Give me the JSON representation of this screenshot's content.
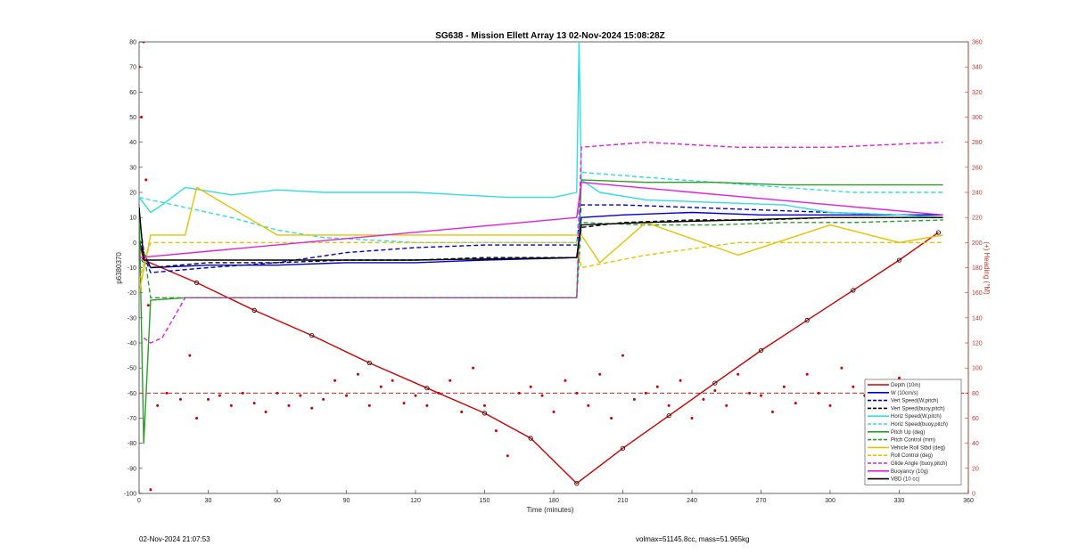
{
  "chart_data": {
    "type": "line",
    "title": "SG638 - Mission Ellett Array 13 02-Nov-2024 15:08:28Z",
    "xlabel": "Time (minutes)",
    "ylabel": "p6380370",
    "ylabel_right": "(+) Heading (°M)",
    "xlim": [
      0,
      360
    ],
    "ylim": [
      -100,
      80
    ],
    "ylim_right": [
      0,
      360
    ],
    "xticks": [
      "0",
      "30",
      "60",
      "90",
      "120",
      "150",
      "180",
      "210",
      "240",
      "270",
      "300",
      "330",
      "360"
    ],
    "yticks": [
      "80",
      "70",
      "60",
      "50",
      "40",
      "30",
      "20",
      "10",
      "0",
      "-10",
      "-20",
      "-30",
      "-40",
      "-50",
      "-60",
      "-70",
      "-80",
      "-90",
      "-100"
    ],
    "yticks_right": [
      "360",
      "340",
      "320",
      "300",
      "280",
      "260",
      "240",
      "220",
      "200",
      "180",
      "160",
      "140",
      "120",
      "100",
      "80",
      "60",
      "40",
      "20",
      "0"
    ],
    "grid": false,
    "legend_position": "bottom-right",
    "series": [
      {
        "name": "Depth (10m)",
        "color": "#cc0000",
        "style": "solid-marker",
        "x": [
          0,
          2,
          25,
          50,
          75,
          100,
          125,
          150,
          170,
          190,
          210,
          230,
          250,
          270,
          290,
          310,
          330,
          347
        ],
        "y": [
          0,
          -7,
          -16,
          -27,
          -37,
          -48,
          -58,
          -68,
          -78,
          -96,
          -82,
          -69,
          -56,
          -43,
          -31,
          -19,
          -7,
          4
        ]
      },
      {
        "name": "W (10cm/s)",
        "color": "#0000cc",
        "style": "solid",
        "x": [
          0,
          5,
          30,
          60,
          90,
          120,
          150,
          190,
          192,
          210,
          240,
          270,
          300,
          330,
          349
        ],
        "y": [
          0,
          -10,
          -9,
          -9,
          -8,
          -8,
          -7,
          -6,
          10,
          11,
          12,
          11,
          11,
          11,
          11
        ]
      },
      {
        "name": "Vert Speed(W,pitch)",
        "color": "#0000cc",
        "style": "dashed",
        "x": [
          0,
          5,
          30,
          60,
          90,
          120,
          150,
          190,
          192,
          210,
          240,
          270,
          300,
          330,
          349
        ],
        "y": [
          0,
          -12,
          -10,
          -8,
          -4,
          -2,
          -1,
          -1,
          15,
          15,
          14,
          13,
          12,
          11,
          11
        ]
      },
      {
        "name": "Vert Speed(buoy,pitch)",
        "color": "#000000",
        "style": "dashed",
        "x": [
          0,
          5,
          30,
          60,
          90,
          120,
          150,
          190,
          192,
          210,
          240,
          270,
          300,
          330,
          349
        ],
        "y": [
          0,
          -10,
          -8,
          -8,
          -7,
          -7,
          -6,
          -6,
          6,
          8,
          9,
          9,
          10,
          10,
          10
        ]
      },
      {
        "name": "Horiz Speed(W,pitch)",
        "color": "#33dddd",
        "style": "solid",
        "x": [
          0,
          5,
          10,
          20,
          40,
          60,
          80,
          100,
          120,
          140,
          160,
          180,
          190,
          191,
          192,
          200,
          220,
          250,
          280,
          300,
          330,
          349
        ],
        "y": [
          18,
          12,
          15,
          22,
          19,
          21,
          20,
          20,
          20,
          19,
          18,
          18,
          20,
          80,
          25,
          20,
          17,
          16,
          15,
          12,
          11,
          10
        ]
      },
      {
        "name": "Horiz Speed(buoy,pitch)",
        "color": "#33dddd",
        "style": "dashed",
        "x": [
          0,
          20,
          40,
          60,
          80,
          100,
          120,
          150,
          190,
          192,
          220,
          250,
          280,
          310,
          349
        ],
        "y": [
          18,
          14,
          10,
          5,
          2,
          1,
          0,
          0,
          0,
          28,
          26,
          24,
          22,
          20,
          20
        ]
      },
      {
        "name": "Pitch Up (deg)",
        "color": "#2a9d2a",
        "style": "solid",
        "x": [
          0,
          2,
          5,
          20,
          60,
          120,
          190,
          192,
          220,
          250,
          280,
          310,
          349
        ],
        "y": [
          15,
          -80,
          -23,
          -22,
          -22,
          -22,
          -22,
          25,
          24,
          24,
          23,
          23,
          23
        ]
      },
      {
        "name": "Pitch Control (mm)",
        "color": "#2a9d2a",
        "style": "dashed",
        "x": [
          0,
          5,
          60,
          120,
          190,
          192,
          220,
          250,
          280,
          310,
          349
        ],
        "y": [
          10,
          -22,
          -22,
          -22,
          -22,
          8,
          7,
          7,
          8,
          8,
          9
        ]
      },
      {
        "name": "Vehicle Roll Stbd (deg)",
        "color": "#e6c200",
        "style": "solid",
        "x": [
          0,
          5,
          20,
          25,
          60,
          120,
          190,
          192,
          200,
          220,
          260,
          300,
          330,
          349
        ],
        "y": [
          -20,
          3,
          3,
          22,
          3,
          3,
          3,
          3,
          -8,
          8,
          -5,
          7,
          0,
          3
        ]
      },
      {
        "name": "Roll Control (deg)",
        "color": "#e6c200",
        "style": "dashed",
        "x": [
          0,
          5,
          20,
          60,
          120,
          190,
          192,
          220,
          260,
          300,
          349
        ],
        "y": [
          -15,
          0,
          0,
          0,
          0,
          0,
          -10,
          -5,
          0,
          0,
          0
        ]
      },
      {
        "name": "Glide Angle (buoy,pitch)",
        "color": "#dd22dd",
        "style": "dashed",
        "x": [
          2,
          5,
          10,
          20,
          60,
          120,
          190,
          192,
          220,
          260,
          300,
          349
        ],
        "y": [
          -38,
          -40,
          -38,
          -22,
          -22,
          -22,
          -22,
          38,
          40,
          38,
          38,
          40
        ]
      },
      {
        "name": "Buoyancy (10g)",
        "color": "#dd22dd",
        "style": "solid",
        "x": [
          0,
          190,
          192,
          349
        ],
        "y": [
          -6,
          10,
          24,
          11
        ]
      },
      {
        "name": "VBD (10 cc)",
        "color": "#000000",
        "style": "solid",
        "x": [
          0,
          2,
          20,
          60,
          120,
          190,
          192,
          220,
          260,
          300,
          349
        ],
        "y": [
          14,
          -7,
          -7,
          -7,
          -7,
          -6,
          7,
          8,
          9,
          10,
          10
        ]
      }
    ],
    "heading_series": {
      "name": "Heading",
      "color": "#cc0000",
      "axis": "right",
      "x": [
        0,
        1,
        2,
        3,
        4,
        5,
        8,
        12,
        18,
        22,
        25,
        30,
        35,
        40,
        45,
        50,
        55,
        60,
        65,
        70,
        75,
        80,
        85,
        90,
        95,
        100,
        105,
        110,
        115,
        120,
        125,
        130,
        135,
        140,
        145,
        150,
        155,
        160,
        165,
        170,
        175,
        180,
        185,
        190,
        195,
        200,
        205,
        210,
        215,
        220,
        225,
        230,
        235,
        240,
        245,
        250,
        255,
        260,
        265,
        270,
        275,
        280,
        285,
        290,
        295,
        300,
        305,
        310,
        315,
        320,
        325,
        330,
        335,
        340,
        345,
        349
      ],
      "y": [
        340,
        300,
        360,
        250,
        150,
        3,
        70,
        80,
        75,
        110,
        60,
        75,
        78,
        70,
        80,
        72,
        65,
        80,
        70,
        78,
        68,
        75,
        90,
        78,
        95,
        70,
        85,
        90,
        72,
        78,
        70,
        80,
        90,
        65,
        100,
        70,
        50,
        30,
        80,
        85,
        78,
        65,
        90,
        80,
        70,
        95,
        60,
        110,
        75,
        80,
        85,
        70,
        90,
        60,
        75,
        82,
        70,
        95,
        80,
        78,
        65,
        85,
        72,
        95,
        80,
        70,
        100,
        85,
        78,
        75,
        80,
        92,
        75,
        80,
        70,
        78
      ],
      "reference": 80
    }
  },
  "footer": {
    "timestamp": "02-Nov-2024 21:07:53",
    "summary": "volmax=51145.8cc, mass=51.965kg"
  }
}
